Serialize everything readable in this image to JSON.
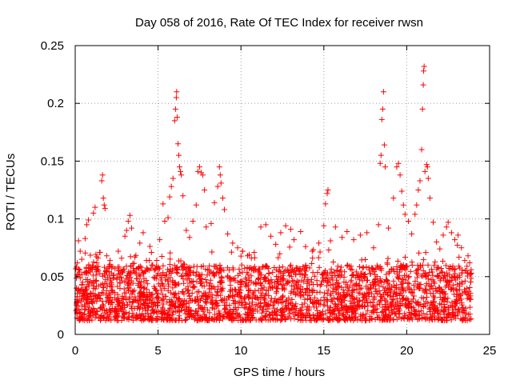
{
  "chart_data": {
    "type": "scatter",
    "title": "Day 058 of 2016, Rate Of TEC Index for receiver rwsn",
    "xlabel": "GPS time / hours",
    "ylabel": "ROTI / TECUs",
    "xlim": [
      0,
      25
    ],
    "ylim": [
      0,
      0.25
    ],
    "xticks": [
      0,
      5,
      10,
      15,
      20,
      25
    ],
    "yticks": [
      0,
      0.05,
      0.1,
      0.15,
      0.2,
      0.25
    ],
    "xtick_labels": [
      "0",
      "5",
      "10",
      "15",
      "20",
      "25"
    ],
    "ytick_labels": [
      "0",
      "0.05",
      "0.1",
      "0.15",
      "0.2",
      "0.25"
    ],
    "grid": true,
    "marker": "+",
    "color": "#ff0000",
    "series": [
      {
        "name": "ROTI",
        "points": [
          [
            0.1,
            0.03
          ],
          [
            0.2,
            0.081
          ],
          [
            0.3,
            0.072
          ],
          [
            0.4,
            0.065
          ],
          [
            0.6,
            0.083
          ],
          [
            0.7,
            0.095
          ],
          [
            0.8,
            0.099
          ],
          [
            0.9,
            0.058
          ],
          [
            1.1,
            0.105
          ],
          [
            1.2,
            0.11
          ],
          [
            1.3,
            0.062
          ],
          [
            1.5,
            0.071
          ],
          [
            1.6,
            0.133
          ],
          [
            1.65,
            0.138
          ],
          [
            1.7,
            0.118
          ],
          [
            1.75,
            0.112
          ],
          [
            1.8,
            0.109
          ],
          [
            1.9,
            0.068
          ],
          [
            2.1,
            0.064
          ],
          [
            2.4,
            0.057
          ],
          [
            2.6,
            0.072
          ],
          [
            2.8,
            0.066
          ],
          [
            3.0,
            0.085
          ],
          [
            3.1,
            0.09
          ],
          [
            3.2,
            0.098
          ],
          [
            3.3,
            0.103
          ],
          [
            3.4,
            0.092
          ],
          [
            3.6,
            0.067
          ],
          [
            3.9,
            0.079
          ],
          [
            4.1,
            0.088
          ],
          [
            4.3,
            0.064
          ],
          [
            4.6,
            0.071
          ],
          [
            4.9,
            0.059
          ],
          [
            5.1,
            0.082
          ],
          [
            5.3,
            0.113
          ],
          [
            5.4,
            0.098
          ],
          [
            5.6,
            0.101
          ],
          [
            5.7,
            0.119
          ],
          [
            5.8,
            0.128
          ],
          [
            5.9,
            0.135
          ],
          [
            6.0,
            0.185
          ],
          [
            6.05,
            0.195
          ],
          [
            6.1,
            0.205
          ],
          [
            6.12,
            0.21
          ],
          [
            6.15,
            0.188
          ],
          [
            6.2,
            0.165
          ],
          [
            6.25,
            0.155
          ],
          [
            6.3,
            0.145
          ],
          [
            6.35,
            0.141
          ],
          [
            6.4,
            0.138
          ],
          [
            6.5,
            0.12
          ],
          [
            6.7,
            0.09
          ],
          [
            6.9,
            0.084
          ],
          [
            7.1,
            0.098
          ],
          [
            7.3,
            0.112
          ],
          [
            7.4,
            0.141
          ],
          [
            7.5,
            0.145
          ],
          [
            7.6,
            0.14
          ],
          [
            7.7,
            0.138
          ],
          [
            7.8,
            0.125
          ],
          [
            7.9,
            0.093
          ],
          [
            8.2,
            0.096
          ],
          [
            8.4,
            0.114
          ],
          [
            8.6,
            0.128
          ],
          [
            8.7,
            0.145
          ],
          [
            8.75,
            0.138
          ],
          [
            8.8,
            0.131
          ],
          [
            8.9,
            0.118
          ],
          [
            9.0,
            0.108
          ],
          [
            9.2,
            0.087
          ],
          [
            9.5,
            0.079
          ],
          [
            9.8,
            0.075
          ],
          [
            10.1,
            0.072
          ],
          [
            10.4,
            0.068
          ],
          [
            10.8,
            0.071
          ],
          [
            11.2,
            0.093
          ],
          [
            11.5,
            0.095
          ],
          [
            11.8,
            0.085
          ],
          [
            12.1,
            0.078
          ],
          [
            12.4,
            0.088
          ],
          [
            12.7,
            0.094
          ],
          [
            13.0,
            0.091
          ],
          [
            13.2,
            0.082
          ],
          [
            13.6,
            0.089
          ],
          [
            13.9,
            0.076
          ],
          [
            14.3,
            0.072
          ],
          [
            14.7,
            0.079
          ],
          [
            15.0,
            0.094
          ],
          [
            15.1,
            0.113
          ],
          [
            15.2,
            0.122
          ],
          [
            15.25,
            0.125
          ],
          [
            15.4,
            0.081
          ],
          [
            15.7,
            0.093
          ],
          [
            16.1,
            0.084
          ],
          [
            16.4,
            0.089
          ],
          [
            16.8,
            0.082
          ],
          [
            17.2,
            0.086
          ],
          [
            17.6,
            0.088
          ],
          [
            18.0,
            0.075
          ],
          [
            18.3,
            0.095
          ],
          [
            18.4,
            0.148
          ],
          [
            18.45,
            0.155
          ],
          [
            18.5,
            0.186
          ],
          [
            18.55,
            0.195
          ],
          [
            18.6,
            0.21
          ],
          [
            18.65,
            0.164
          ],
          [
            18.7,
            0.145
          ],
          [
            18.9,
            0.092
          ],
          [
            19.2,
            0.118
          ],
          [
            19.4,
            0.145
          ],
          [
            19.5,
            0.148
          ],
          [
            19.6,
            0.138
          ],
          [
            19.7,
            0.124
          ],
          [
            19.8,
            0.112
          ],
          [
            19.9,
            0.104
          ],
          [
            20.1,
            0.098
          ],
          [
            20.3,
            0.087
          ],
          [
            20.5,
            0.104
          ],
          [
            20.6,
            0.112
          ],
          [
            20.7,
            0.125
          ],
          [
            20.8,
            0.133
          ],
          [
            20.9,
            0.16
          ],
          [
            20.95,
            0.195
          ],
          [
            21.0,
            0.216
          ],
          [
            21.02,
            0.228
          ],
          [
            21.05,
            0.232
          ],
          [
            21.1,
            0.141
          ],
          [
            21.2,
            0.147
          ],
          [
            21.25,
            0.145
          ],
          [
            21.3,
            0.135
          ],
          [
            21.4,
            0.118
          ],
          [
            21.6,
            0.097
          ],
          [
            21.8,
            0.08
          ],
          [
            22.0,
            0.074
          ],
          [
            22.2,
            0.086
          ],
          [
            22.4,
            0.093
          ],
          [
            22.5,
            0.097
          ],
          [
            22.7,
            0.088
          ],
          [
            22.9,
            0.082
          ],
          [
            23.1,
            0.086
          ],
          [
            23.3,
            0.075
          ],
          [
            23.5,
            0.064
          ],
          [
            23.7,
            0.068
          ],
          [
            23.8,
            0.062
          ]
        ],
        "base_band": {
          "x_range": [
            0,
            23.9
          ],
          "y_range": [
            0.012,
            0.06
          ]
        }
      }
    ]
  }
}
